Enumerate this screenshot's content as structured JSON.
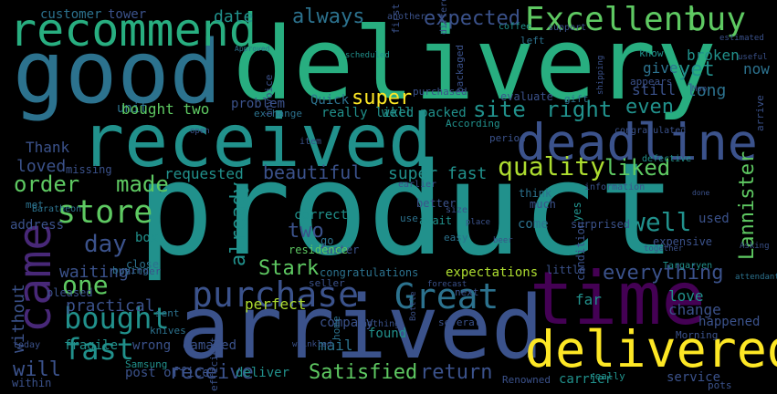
{
  "image": {
    "type": "word-cloud",
    "background": "#000000",
    "palette": [
      "#440154",
      "#3b528b",
      "#2c728e",
      "#21918c",
      "#28ae80",
      "#5ec962",
      "#addc30",
      "#fde725"
    ]
  },
  "words": [
    {
      "text": "product",
      "color": "#21918c"
    },
    {
      "text": "delivery",
      "color": "#28ae80"
    },
    {
      "text": "good",
      "color": "#2c728e"
    },
    {
      "text": "received",
      "color": "#21918c"
    },
    {
      "text": "arrived",
      "color": "#3b528b"
    },
    {
      "text": "time",
      "color": "#440154"
    },
    {
      "text": "deadline",
      "color": "#3b528b"
    },
    {
      "text": "delivered",
      "color": "#fde725"
    },
    {
      "text": "recommend",
      "color": "#28ae80"
    },
    {
      "text": "came",
      "color": "#482878"
    },
    {
      "text": "Excellent",
      "color": "#5ec962"
    },
    {
      "text": "buy",
      "color": "#5ec962"
    },
    {
      "text": "purchase",
      "color": "#3b528b"
    },
    {
      "text": "Great",
      "color": "#2c728e"
    },
    {
      "text": "bought",
      "color": "#21918c"
    },
    {
      "text": "store",
      "color": "#5ec962"
    },
    {
      "text": "quality",
      "color": "#addc30"
    },
    {
      "text": "fast",
      "color": "#21918c"
    },
    {
      "text": "well",
      "color": "#21918c"
    },
    {
      "text": "day",
      "color": "#3b528b"
    },
    {
      "text": "one",
      "color": "#5ec962"
    },
    {
      "text": "order",
      "color": "#5ec962"
    },
    {
      "text": "made",
      "color": "#5ec962"
    },
    {
      "text": "liked",
      "color": "#5ec962"
    },
    {
      "text": "expected",
      "color": "#3b528b"
    },
    {
      "text": "always",
      "color": "#2c728e"
    },
    {
      "text": "site",
      "color": "#21918c"
    },
    {
      "text": "right",
      "color": "#21918c"
    },
    {
      "text": "super",
      "color": "#fde725"
    },
    {
      "text": "yet",
      "color": "#21918c"
    },
    {
      "text": "even",
      "color": "#21918c"
    },
    {
      "text": "everything",
      "color": "#3b528b"
    },
    {
      "text": "Lannister",
      "color": "#5ec962"
    },
    {
      "text": "Satisfied",
      "color": "#5ec962"
    },
    {
      "text": "return",
      "color": "#3b528b"
    },
    {
      "text": "receive",
      "color": "#3b528b"
    },
    {
      "text": "two",
      "color": "#3b528b"
    },
    {
      "text": "Stark",
      "color": "#5ec962"
    },
    {
      "text": "already",
      "color": "#21918c"
    },
    {
      "text": "beautiful",
      "color": "#3b528b"
    },
    {
      "text": "super fast",
      "color": "#21918c"
    },
    {
      "text": "loved",
      "color": "#3b528b"
    },
    {
      "text": "Thank",
      "color": "#3b528b"
    },
    {
      "text": "requested",
      "color": "#21918c"
    },
    {
      "text": "waiting",
      "color": "#3b528b"
    },
    {
      "text": "will",
      "color": "#3b528b"
    },
    {
      "text": "without",
      "color": "#3b528b"
    },
    {
      "text": "practical",
      "color": "#3b528b"
    },
    {
      "text": "perfect",
      "color": "#addc30"
    },
    {
      "text": "mail",
      "color": "#2c728e"
    },
    {
      "text": "found",
      "color": "#21918c"
    },
    {
      "text": "date",
      "color": "#21918c"
    },
    {
      "text": "customer",
      "color": "#2c728e"
    },
    {
      "text": "tower",
      "color": "#3b528b"
    },
    {
      "text": "long",
      "color": "#2c728e"
    },
    {
      "text": "still",
      "color": "#3b528b"
    },
    {
      "text": "give",
      "color": "#2c728e"
    },
    {
      "text": "broken",
      "color": "#21918c"
    },
    {
      "text": "now",
      "color": "#2c728e"
    },
    {
      "text": "love",
      "color": "#21918c"
    },
    {
      "text": "change",
      "color": "#3b528b"
    },
    {
      "text": "service",
      "color": "#3b528b"
    },
    {
      "text": "carrier",
      "color": "#21918c"
    },
    {
      "text": "deliver",
      "color": "#21918c"
    },
    {
      "text": "post office",
      "color": "#3b528b"
    },
    {
      "text": "company",
      "color": "#3b528b"
    },
    {
      "text": "expectations",
      "color": "#addc30"
    },
    {
      "text": "congratulations",
      "color": "#2c728e"
    },
    {
      "text": "problem",
      "color": "#3b528b"
    },
    {
      "text": "unit",
      "color": "#2c728e"
    },
    {
      "text": "bought two",
      "color": "#5ec962"
    },
    {
      "text": "Quick",
      "color": "#2c728e"
    },
    {
      "text": "really liked",
      "color": "#21918c"
    },
    {
      "text": "well packed",
      "color": "#21918c"
    },
    {
      "text": "evaluate",
      "color": "#3b528b"
    },
    {
      "text": "correct",
      "color": "#21918c"
    },
    {
      "text": "come",
      "color": "#2c728e"
    },
    {
      "text": "wrong",
      "color": "#3b528b"
    },
    {
      "text": "damaged",
      "color": "#3b528b"
    },
    {
      "text": "fragile",
      "color": "#21918c"
    },
    {
      "text": "box",
      "color": "#21918c"
    },
    {
      "text": "address",
      "color": "#3b528b"
    },
    {
      "text": "missing",
      "color": "#3b528b"
    },
    {
      "text": "go",
      "color": "#2c728e"
    },
    {
      "text": "faster",
      "color": "#3b528b"
    },
    {
      "text": "far",
      "color": "#21918c"
    },
    {
      "text": "used",
      "color": "#3b528b"
    },
    {
      "text": "happened",
      "color": "#3b528b"
    },
    {
      "text": "await",
      "color": "#21918c"
    },
    {
      "text": "better",
      "color": "#3b528b"
    },
    {
      "text": "pleased",
      "color": "#3b528b"
    },
    {
      "text": "within",
      "color": "#3b528b"
    },
    {
      "text": "buying",
      "color": "#2c728e"
    },
    {
      "text": "close",
      "color": "#2c728e"
    },
    {
      "text": "partner",
      "color": "#3b528b"
    },
    {
      "text": "knives",
      "color": "#2c728e"
    },
    {
      "text": "sent",
      "color": "#2c728e"
    },
    {
      "text": "yes",
      "color": "#21918c"
    },
    {
      "text": "think",
      "color": "#2c728e"
    },
    {
      "text": "much",
      "color": "#3b528b"
    },
    {
      "text": "surprised",
      "color": "#3b528b"
    },
    {
      "text": "expensive",
      "color": "#3b528b"
    },
    {
      "text": "condition",
      "color": "#3b528b"
    },
    {
      "text": "little",
      "color": "#3b528b"
    },
    {
      "text": "met",
      "color": "#2c728e"
    },
    {
      "text": "Samsung",
      "color": "#21918c"
    },
    {
      "text": "seller",
      "color": "#3b528b"
    },
    {
      "text": "efficient",
      "color": "#3b528b"
    },
    {
      "text": "several",
      "color": "#3b528b"
    },
    {
      "text": "Baratheon",
      "color": "#2c728e"
    },
    {
      "text": "Targaryen",
      "color": "#21918c"
    },
    {
      "text": "Morning",
      "color": "#3b528b"
    },
    {
      "text": "residence",
      "color": "#5ec962"
    },
    {
      "text": "Renowned",
      "color": "#3b528b"
    },
    {
      "text": "really",
      "color": "#21918c"
    },
    {
      "text": "pots",
      "color": "#3b528b"
    },
    {
      "text": "period",
      "color": "#3b528b"
    },
    {
      "text": "According",
      "color": "#21918c"
    },
    {
      "text": "gift",
      "color": "#2c728e"
    },
    {
      "text": "purchased",
      "color": "#3b528b"
    },
    {
      "text": "packaged",
      "color": "#3b528b"
    },
    {
      "text": "coffee",
      "color": "#21918c"
    },
    {
      "text": "support",
      "color": "#3b528b"
    },
    {
      "text": "left",
      "color": "#2c728e"
    },
    {
      "text": "different",
      "color": "#3b528b"
    },
    {
      "text": "another",
      "color": "#3b528b"
    },
    {
      "text": "Approved",
      "color": "#2c728e"
    },
    {
      "text": "scheduled",
      "color": "#21918c"
    },
    {
      "text": "first",
      "color": "#3b528b"
    },
    {
      "text": "know",
      "color": "#21918c"
    },
    {
      "text": "appears",
      "color": "#3b528b"
    },
    {
      "text": "useful",
      "color": "#3b528b"
    },
    {
      "text": "estimated",
      "color": "#3b528b"
    },
    {
      "text": "shipping",
      "color": "#3b528b"
    },
    {
      "text": "arrive",
      "color": "#3b528b"
    },
    {
      "text": "congratulated",
      "color": "#3b528b"
    },
    {
      "text": "defective",
      "color": "#21918c"
    },
    {
      "text": "information",
      "color": "#3b528b"
    },
    {
      "text": "size",
      "color": "#3b528b"
    },
    {
      "text": "easy",
      "color": "#2c728e"
    },
    {
      "text": "next",
      "color": "#3b528b"
    },
    {
      "text": "home",
      "color": "#2c728e"
    },
    {
      "text": "nothing",
      "color": "#3b528b"
    },
    {
      "text": "today",
      "color": "#3b528b"
    },
    {
      "text": "item",
      "color": "#3b528b"
    },
    {
      "text": "exchange",
      "color": "#2c728e"
    },
    {
      "text": "invoice",
      "color": "#3b528b"
    },
    {
      "text": "earlier",
      "color": "#3b528b"
    },
    {
      "text": "use",
      "color": "#2c728e"
    },
    {
      "text": "place",
      "color": "#3b528b"
    },
    {
      "text": "together",
      "color": "#3b528b"
    },
    {
      "text": "Asking",
      "color": "#3b528b"
    },
    {
      "text": "attendant",
      "color": "#2c728e"
    },
    {
      "text": "Moo",
      "color": "#3b528b"
    },
    {
      "text": "open",
      "color": "#3b528b"
    },
    {
      "text": "forecast",
      "color": "#3b528b"
    },
    {
      "text": "wrinkled",
      "color": "#3b528b"
    },
    {
      "text": "Bottle",
      "color": "#3b528b"
    },
    {
      "text": "beer",
      "color": "#3b528b"
    },
    {
      "text": "done",
      "color": "#3b528b"
    }
  ]
}
